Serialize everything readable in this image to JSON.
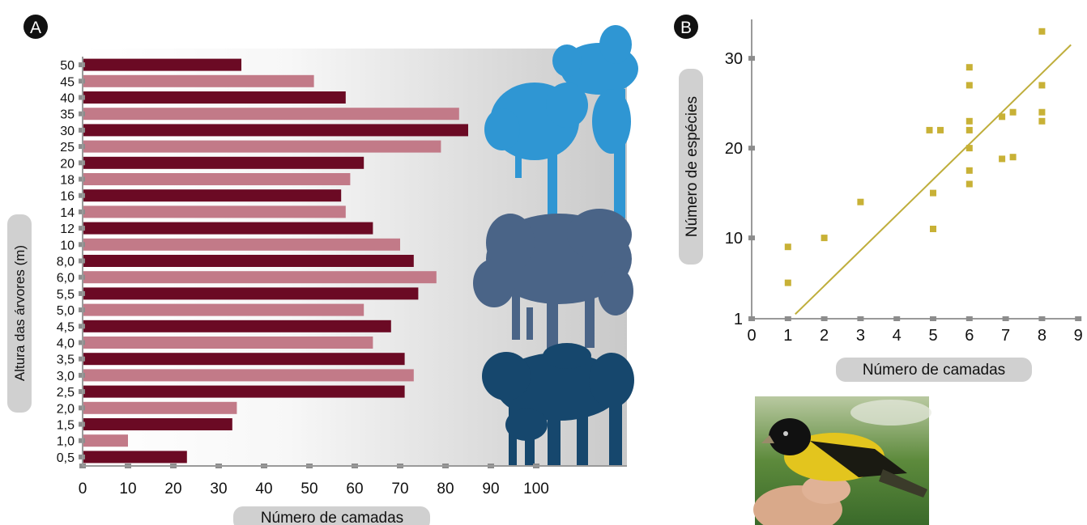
{
  "colors": {
    "bar_dark": "#6b0a24",
    "bar_light": "#c27a88",
    "tick": "#8c8c8c",
    "label_pill": "#d0d0d0",
    "scatter_point": "#c8b136",
    "trend_line": "#bfae3c",
    "canopy_light_blue": "#2f96d3",
    "canopy_slate_blue": "#4a6487",
    "canopy_dark_blue": "#16476d"
  },
  "chart_data": [
    {
      "type": "bar",
      "orientation": "horizontal",
      "panel_label": "A",
      "ylabel": "Altura das árvores (m)",
      "xlabel": "Número de camadas",
      "categories": [
        "50",
        "45",
        "40",
        "35",
        "30",
        "25",
        "20",
        "18",
        "16",
        "14",
        "12",
        "10",
        "8,0",
        "6,0",
        "5,5",
        "5,0",
        "4,5",
        "4,0",
        "3,5",
        "3,0",
        "2,5",
        "2,0",
        "1,5",
        "1,0",
        "0,5"
      ],
      "values": [
        35,
        51,
        58,
        83,
        85,
        79,
        62,
        59,
        57,
        58,
        64,
        70,
        73,
        78,
        74,
        62,
        68,
        64,
        71,
        73,
        71,
        34,
        33,
        10,
        23
      ],
      "xticks": [
        "0",
        "10",
        "20",
        "30",
        "40",
        "50",
        "60",
        "70",
        "80",
        "90",
        "100"
      ],
      "xlim": [
        0,
        120
      ],
      "grid": false,
      "legend": "none"
    },
    {
      "type": "scatter",
      "panel_label": "B",
      "xlabel": "Número de camadas",
      "ylabel": "Número de espécies",
      "xticks": [
        "0",
        "1",
        "2",
        "3",
        "4",
        "5",
        "6",
        "7",
        "8",
        "9"
      ],
      "yticks": [
        "1",
        "10",
        "20",
        "30"
      ],
      "xlim": [
        0,
        9
      ],
      "ylim": [
        1,
        30
      ],
      "points": [
        {
          "x": 1,
          "y": 9
        },
        {
          "x": 1,
          "y": 5
        },
        {
          "x": 2,
          "y": 10
        },
        {
          "x": 3,
          "y": 14
        },
        {
          "x": 4.9,
          "y": 22
        },
        {
          "x": 5.2,
          "y": 22
        },
        {
          "x": 5,
          "y": 15
        },
        {
          "x": 5,
          "y": 11
        },
        {
          "x": 6,
          "y": 29
        },
        {
          "x": 6,
          "y": 27
        },
        {
          "x": 6,
          "y": 23
        },
        {
          "x": 6,
          "y": 22
        },
        {
          "x": 6,
          "y": 20
        },
        {
          "x": 6,
          "y": 17.5
        },
        {
          "x": 6,
          "y": 16
        },
        {
          "x": 6.9,
          "y": 23.5
        },
        {
          "x": 7.2,
          "y": 24
        },
        {
          "x": 6.9,
          "y": 18.8
        },
        {
          "x": 7.2,
          "y": 19
        },
        {
          "x": 8,
          "y": 33
        },
        {
          "x": 8,
          "y": 27
        },
        {
          "x": 8,
          "y": 24
        },
        {
          "x": 8,
          "y": 23
        }
      ],
      "trendline": {
        "x": [
          1.2,
          8.8
        ],
        "y": [
          1.5,
          31.5
        ]
      },
      "grid": false,
      "legend": "none"
    }
  ]
}
